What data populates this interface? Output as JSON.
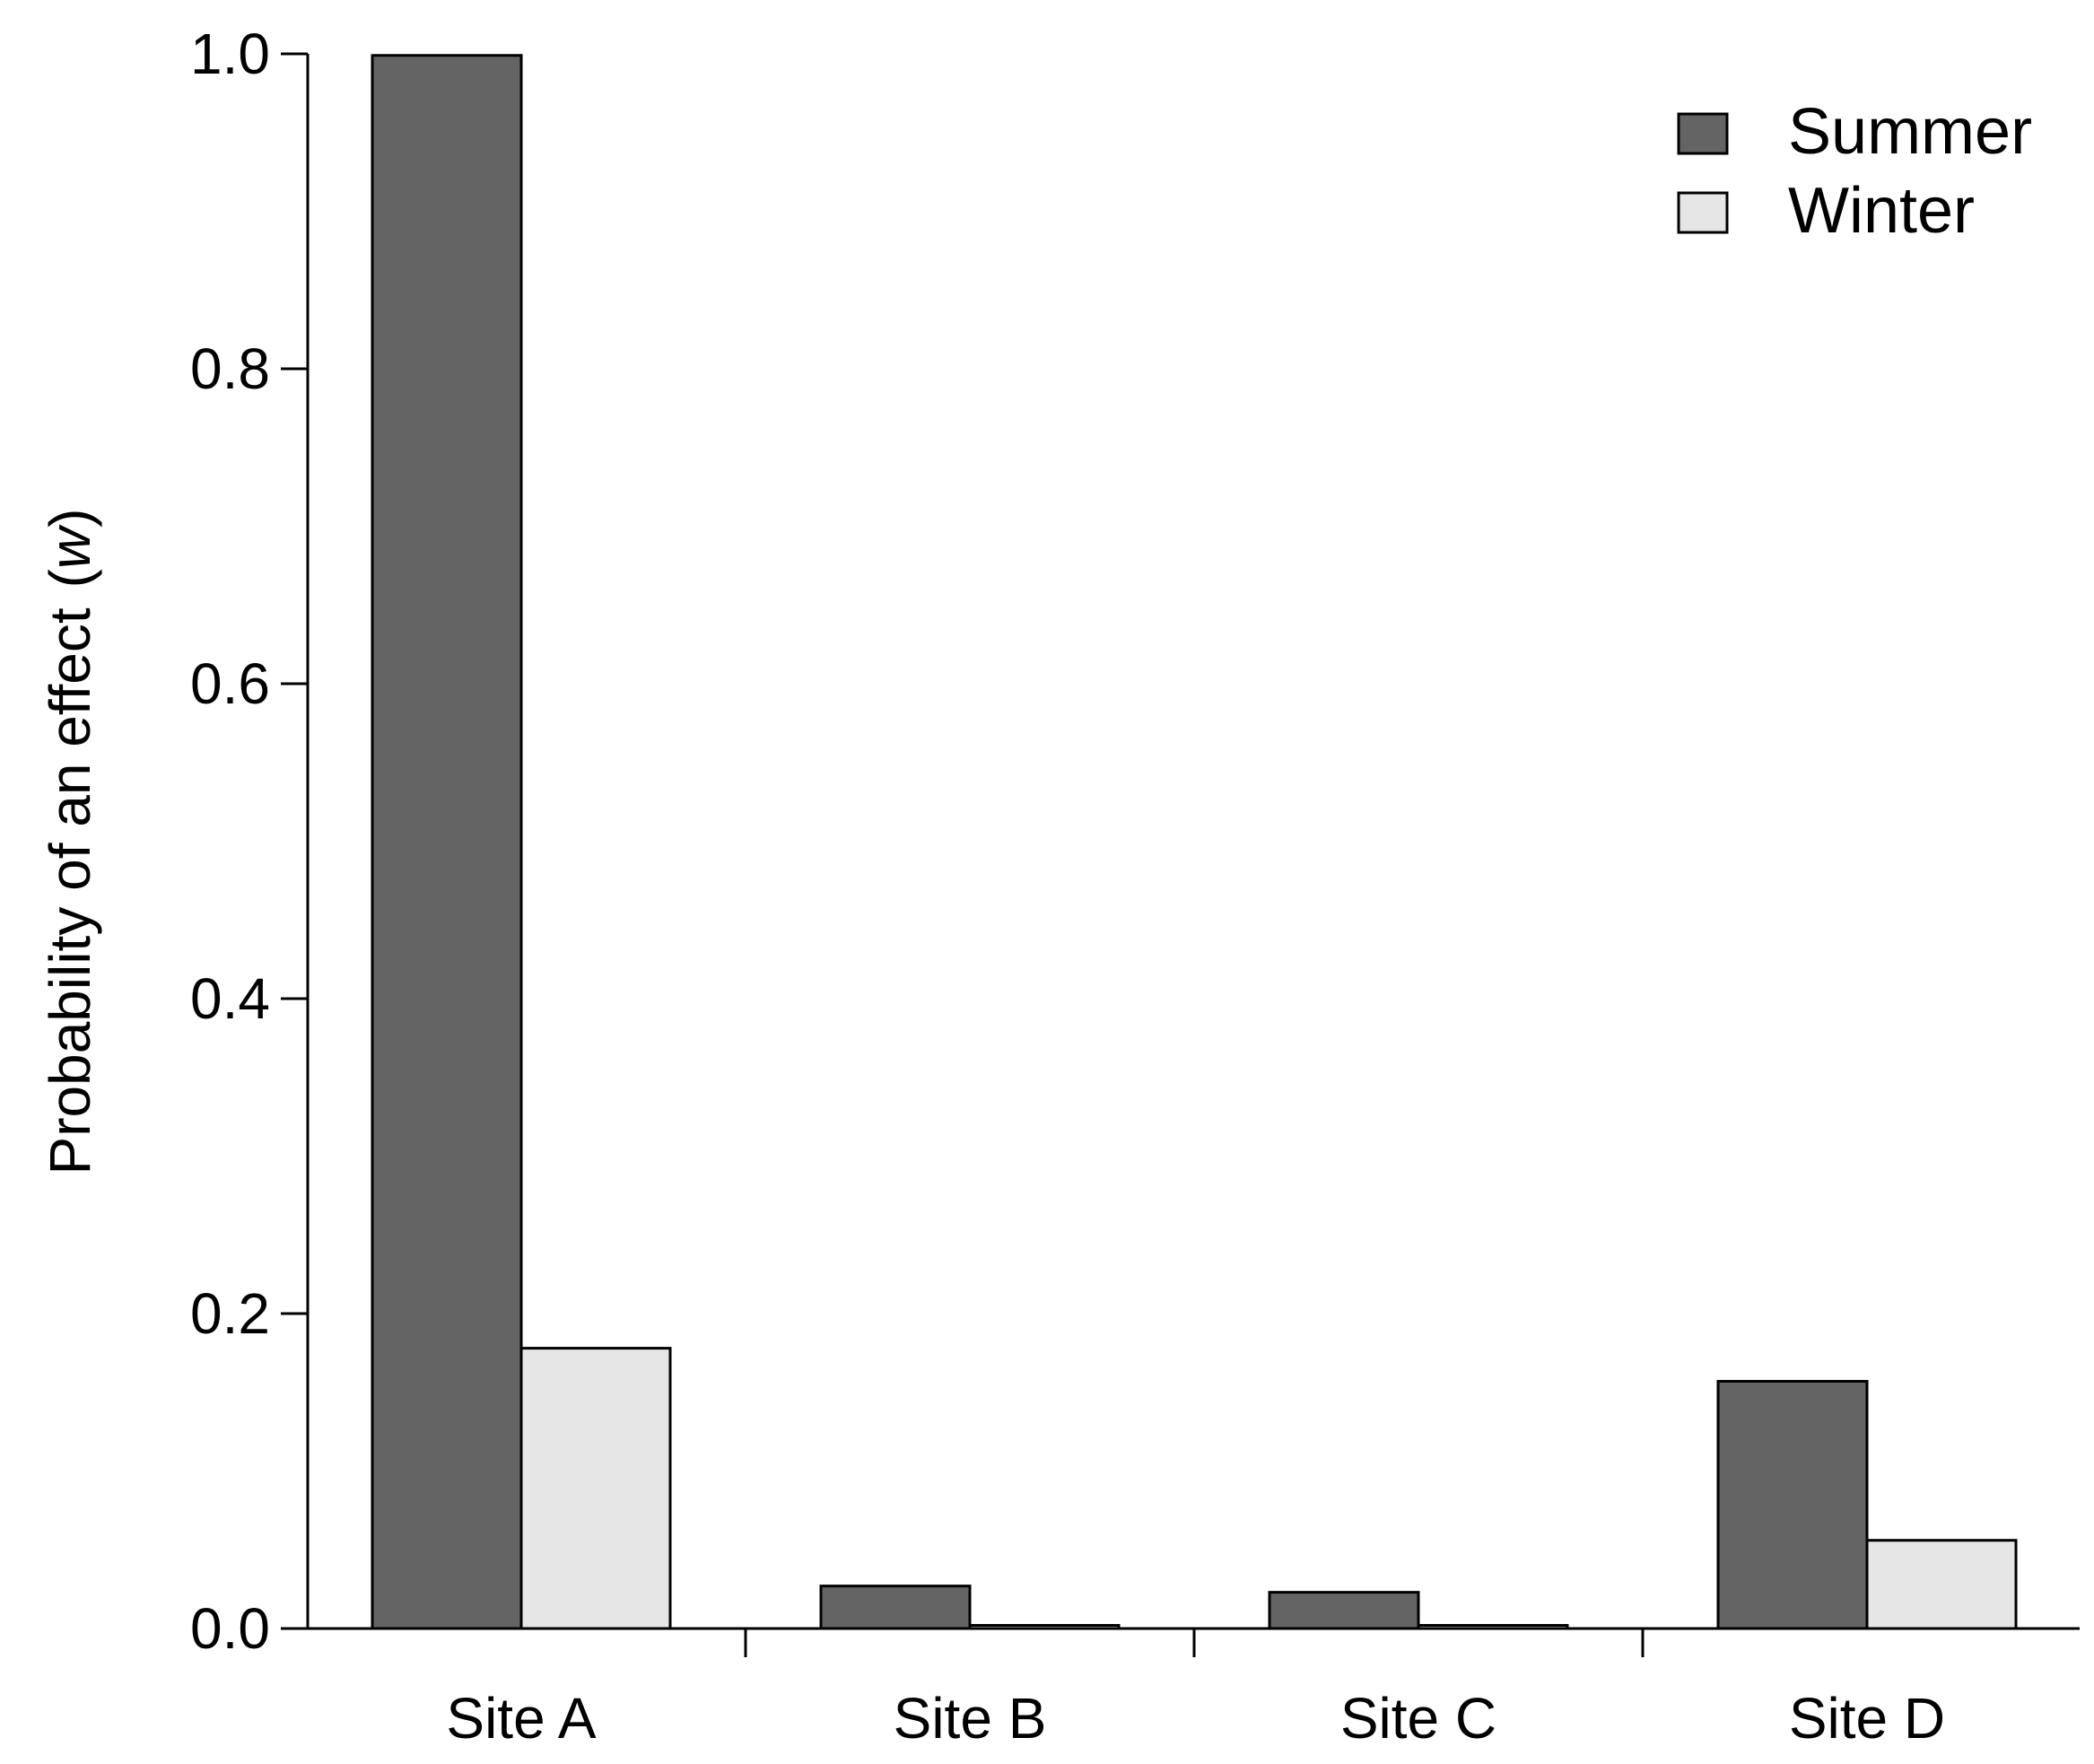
{
  "chart_data": {
    "type": "bar",
    "categories": [
      "Site A",
      "Site B",
      "Site C",
      "Site D"
    ],
    "series": [
      {
        "name": "Summer",
        "color": "#646464",
        "values": [
          0.999,
          0.027,
          0.023,
          0.157
        ]
      },
      {
        "name": "Winter",
        "color": "#e6e6e6",
        "values": [
          0.178,
          0.002,
          0.002,
          0.056
        ]
      }
    ],
    "ylabel_main": "Probability of an effect",
    "ylabel_symbol": "w",
    "ylim": [
      0,
      1
    ],
    "yticks": [
      "0.0",
      "0.2",
      "0.4",
      "0.6",
      "0.8",
      "1.0"
    ],
    "ytick_values": [
      0,
      0.2,
      0.4,
      0.6,
      0.8,
      1.0
    ],
    "legend_position": "top-right",
    "grid": false
  }
}
